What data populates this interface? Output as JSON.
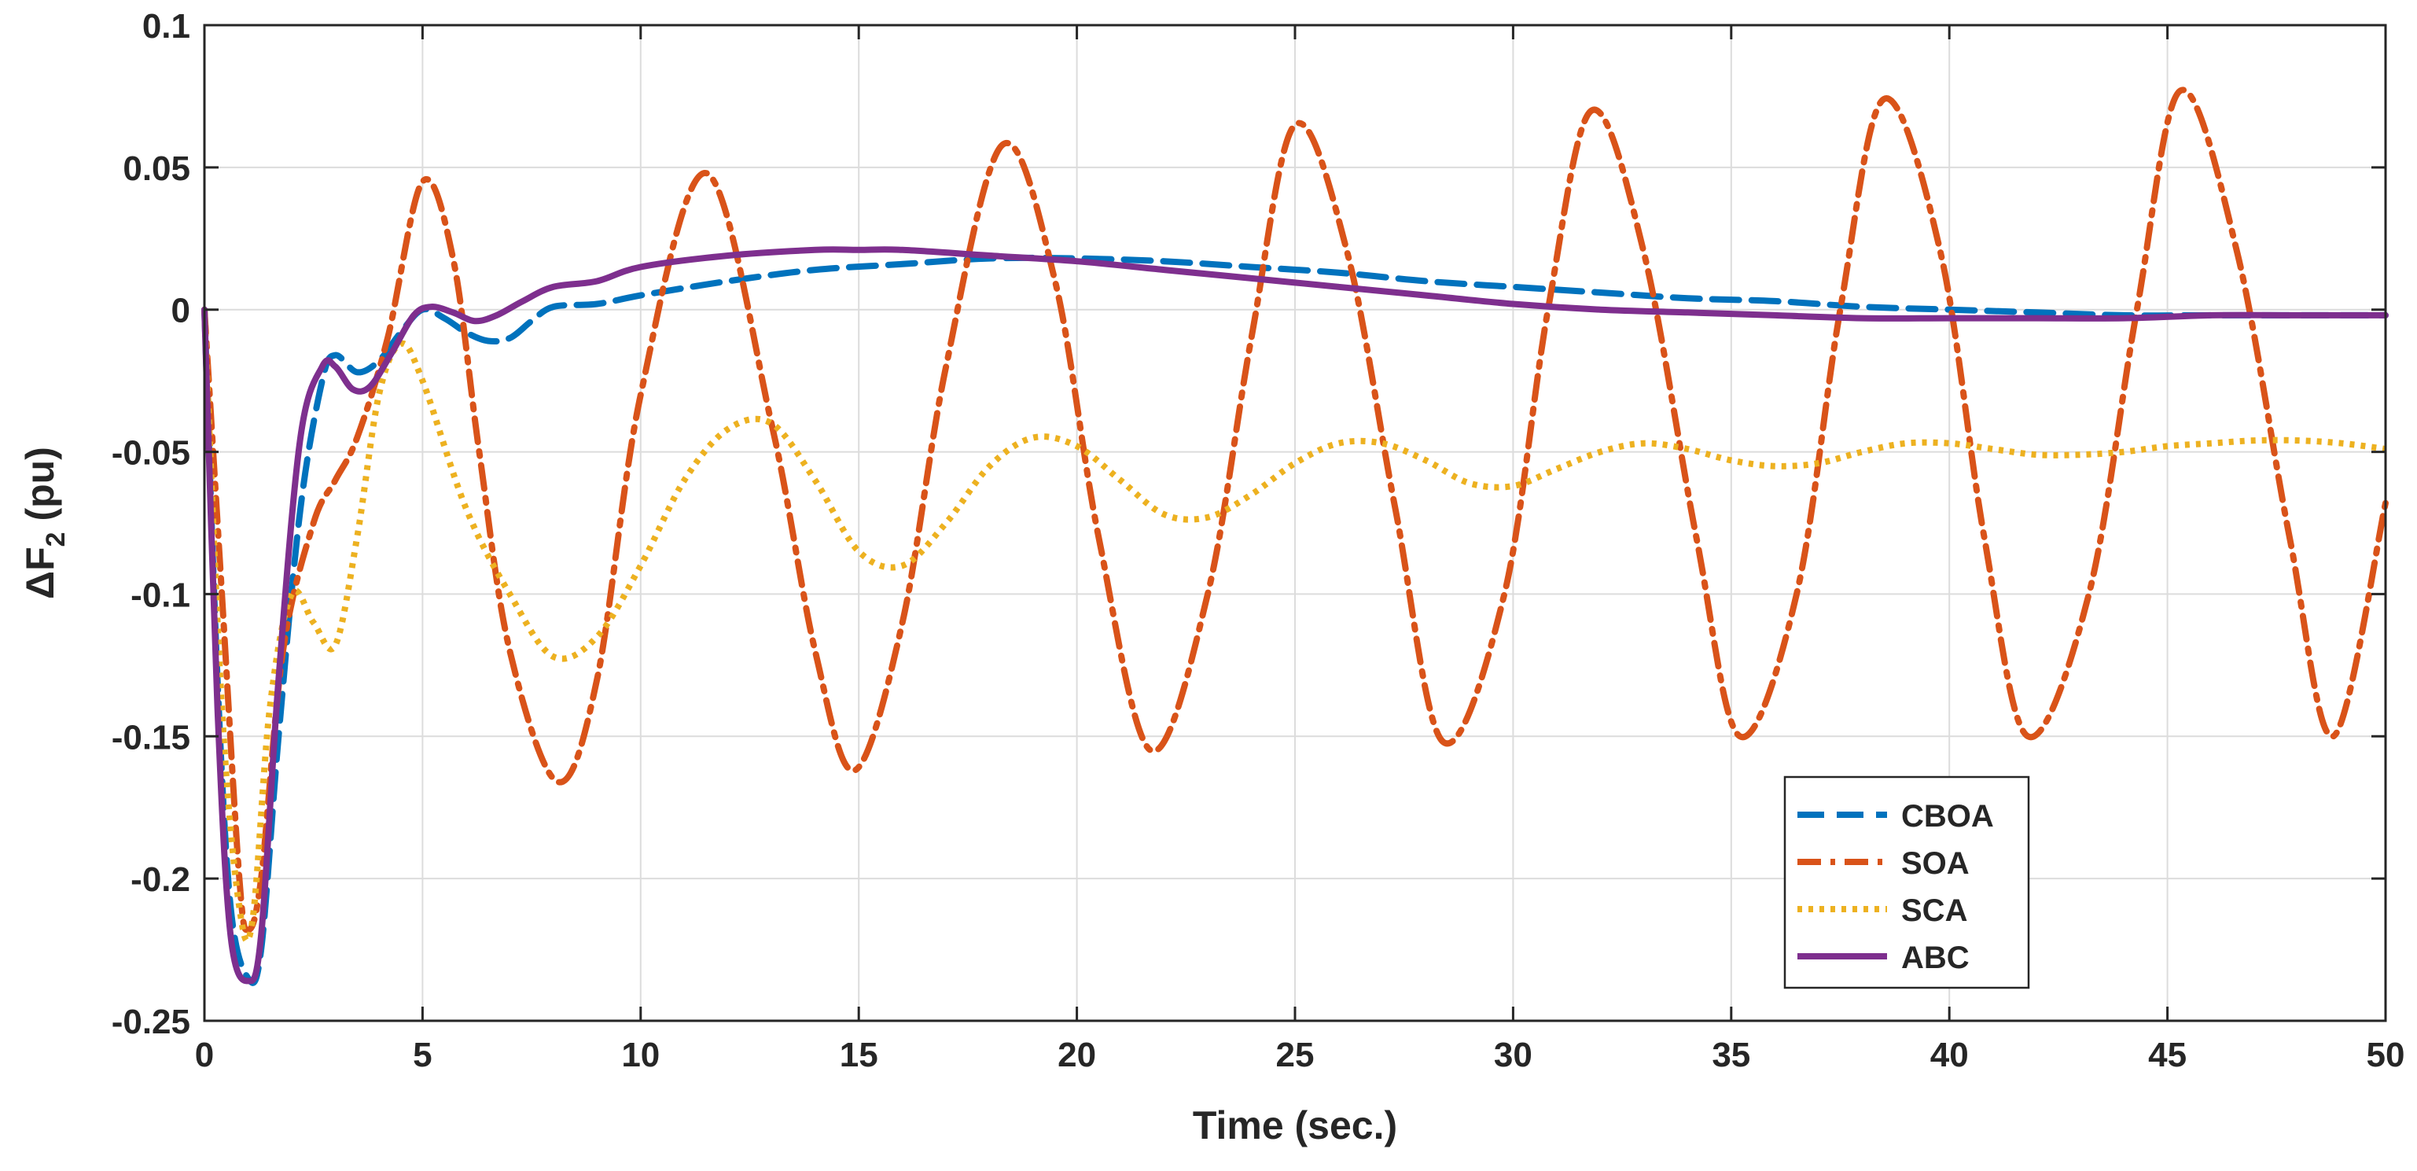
{
  "chart_data": {
    "type": "line",
    "title": "",
    "xlabel": "Time (sec.)",
    "ylabel": "ΔF",
    "ylabel_subscript": "2",
    "ylabel_unit": " (pu)",
    "xlim": [
      0,
      50
    ],
    "ylim": [
      -0.25,
      0.1
    ],
    "xticks": [
      0,
      5,
      10,
      15,
      20,
      25,
      30,
      35,
      40,
      45,
      50
    ],
    "yticks": [
      -0.25,
      -0.2,
      -0.15,
      -0.1,
      -0.05,
      0,
      0.05,
      0.1
    ],
    "xtick_labels": [
      "0",
      "5",
      "10",
      "15",
      "20",
      "25",
      "30",
      "35",
      "40",
      "45",
      "50"
    ],
    "ytick_labels": [
      "-0.25",
      "-0.2",
      "-0.15",
      "-0.1",
      "-0.05",
      "0",
      "0.05",
      "0.1"
    ],
    "grid": true,
    "legend_position": "bottom-right",
    "series": [
      {
        "name": "CBOA",
        "color": "#0072BD",
        "style": "dashed",
        "x": [
          0,
          0.3,
          0.6,
          1.0,
          1.3,
          1.7,
          2.2,
          2.7,
          3.0,
          3.5,
          4.0,
          4.5,
          5.0,
          5.5,
          6.0,
          6.5,
          7.0,
          7.5,
          8.0,
          9.0,
          10.0,
          12.0,
          14.0,
          16.0,
          18.0,
          20.0,
          22.0,
          24.0,
          26.0,
          28.0,
          30.0,
          32.0,
          34.0,
          36.0,
          38.0,
          40.0,
          42.0,
          44.0,
          46.0,
          48.0,
          50.0
        ],
        "y": [
          0,
          -0.13,
          -0.21,
          -0.235,
          -0.225,
          -0.15,
          -0.07,
          -0.025,
          -0.016,
          -0.022,
          -0.018,
          -0.008,
          0.0,
          -0.003,
          -0.008,
          -0.011,
          -0.01,
          -0.004,
          0.001,
          0.002,
          0.005,
          0.01,
          0.014,
          0.016,
          0.018,
          0.018,
          0.017,
          0.015,
          0.013,
          0.01,
          0.008,
          0.006,
          0.004,
          0.003,
          0.001,
          0.0,
          -0.001,
          -0.002,
          -0.002,
          -0.002,
          -0.002
        ]
      },
      {
        "name": "SOA",
        "color": "#D95319",
        "style": "dashdot",
        "x": [
          0,
          0.4,
          0.8,
          1.0,
          1.3,
          1.8,
          2.5,
          3.0,
          3.5,
          4.2,
          5.0,
          5.7,
          6.3,
          7.0,
          8.1,
          9.0,
          10.0,
          11.5,
          13.0,
          14.0,
          14.9,
          16.0,
          17.0,
          18.3,
          19.5,
          20.5,
          21.7,
          23.0,
          24.0,
          25.0,
          26.2,
          27.3,
          28.4,
          29.8,
          30.8,
          31.8,
          33.0,
          34.2,
          35.2,
          36.5,
          37.5,
          38.5,
          39.8,
          40.8,
          41.8,
          43.2,
          44.3,
          45.3,
          46.6,
          47.8,
          48.8,
          50.0
        ],
        "y": [
          0,
          -0.1,
          -0.2,
          -0.218,
          -0.2,
          -0.12,
          -0.075,
          -0.06,
          -0.045,
          -0.01,
          0.045,
          0.018,
          -0.05,
          -0.12,
          -0.166,
          -0.13,
          -0.03,
          0.048,
          -0.04,
          -0.12,
          -0.162,
          -0.11,
          -0.02,
          0.058,
          0.01,
          -0.08,
          -0.155,
          -0.1,
          -0.01,
          0.065,
          0.02,
          -0.07,
          -0.152,
          -0.1,
          0.0,
          0.07,
          0.02,
          -0.08,
          -0.15,
          -0.1,
          0.0,
          0.074,
          0.02,
          -0.08,
          -0.15,
          -0.1,
          0.0,
          0.077,
          0.02,
          -0.08,
          -0.15,
          -0.068
        ]
      },
      {
        "name": "SCA",
        "color": "#EDB120",
        "style": "dotted",
        "x": [
          0,
          0.4,
          0.8,
          1.1,
          1.5,
          2.0,
          2.5,
          3.0,
          3.5,
          4.0,
          4.5,
          5.0,
          6.0,
          7.0,
          8.0,
          9.0,
          10.0,
          11.0,
          12.0,
          13.0,
          14.0,
          15.0,
          16.0,
          17.0,
          18.0,
          19.0,
          20.0,
          21.0,
          22.0,
          23.0,
          24.0,
          25.0,
          26.0,
          27.0,
          28.0,
          29.0,
          30.0,
          31.0,
          32.0,
          33.0,
          34.0,
          35.0,
          36.0,
          37.0,
          38.0,
          39.0,
          40.0,
          41.0,
          42.0,
          43.0,
          44.0,
          45.0,
          46.0,
          47.0,
          48.0,
          49.0,
          50.0
        ],
        "y": [
          0,
          -0.14,
          -0.21,
          -0.215,
          -0.14,
          -0.1,
          -0.11,
          -0.118,
          -0.08,
          -0.03,
          -0.012,
          -0.025,
          -0.07,
          -0.1,
          -0.122,
          -0.115,
          -0.09,
          -0.06,
          -0.042,
          -0.04,
          -0.06,
          -0.085,
          -0.09,
          -0.075,
          -0.055,
          -0.045,
          -0.048,
          -0.06,
          -0.072,
          -0.073,
          -0.065,
          -0.054,
          -0.047,
          -0.047,
          -0.053,
          -0.061,
          -0.062,
          -0.056,
          -0.05,
          -0.047,
          -0.049,
          -0.053,
          -0.055,
          -0.054,
          -0.05,
          -0.047,
          -0.047,
          -0.049,
          -0.051,
          -0.051,
          -0.05,
          -0.048,
          -0.047,
          -0.046,
          -0.046,
          -0.047,
          -0.049
        ]
      },
      {
        "name": "ABC",
        "color": "#7E2F8E",
        "style": "solid",
        "x": [
          0,
          0.3,
          0.6,
          1.0,
          1.3,
          1.7,
          2.2,
          2.7,
          3.0,
          3.4,
          3.8,
          4.3,
          4.8,
          5.2,
          5.7,
          6.2,
          6.7,
          7.3,
          8.0,
          9.0,
          10.0,
          12.0,
          14.0,
          15.0,
          16.0,
          18.0,
          20.0,
          22.0,
          24.0,
          26.0,
          28.0,
          30.0,
          32.0,
          34.0,
          36.0,
          38.0,
          40.0,
          42.0,
          44.0,
          46.0,
          48.0,
          50.0
        ],
        "y": [
          0,
          -0.14,
          -0.22,
          -0.236,
          -0.22,
          -0.13,
          -0.045,
          -0.02,
          -0.02,
          -0.028,
          -0.027,
          -0.015,
          -0.002,
          0.001,
          -0.001,
          -0.004,
          -0.002,
          0.003,
          0.008,
          0.01,
          0.015,
          0.019,
          0.021,
          0.021,
          0.021,
          0.019,
          0.017,
          0.014,
          0.011,
          0.008,
          0.005,
          0.002,
          0.0,
          -0.001,
          -0.002,
          -0.003,
          -0.003,
          -0.003,
          -0.003,
          -0.002,
          -0.002,
          -0.002
        ]
      }
    ]
  }
}
